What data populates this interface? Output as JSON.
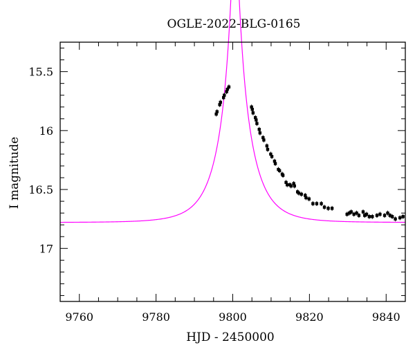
{
  "chart_data": {
    "type": "scatter",
    "title": "OGLE-2022-BLG-0165",
    "xlabel": "HJD - 2450000",
    "ylabel": "I magnitude",
    "xlim": [
      9755,
      9845
    ],
    "ylim": [
      17.45,
      15.25
    ],
    "y_inverted": true,
    "grid": false,
    "x_ticks": [
      9760,
      9780,
      9800,
      9820,
      9840
    ],
    "y_ticks": [
      15.5,
      16,
      16.5,
      17
    ],
    "y_tick_labels": [
      "15.5",
      "16",
      "16.5",
      "17"
    ],
    "model": {
      "color": "#ff00ff",
      "t0": 9800.6,
      "u0": 0.1,
      "tE": 7.5,
      "baseline_mag": 16.78,
      "xrange": [
        9755,
        9845
      ]
    },
    "series": [
      {
        "marker_color": "#000000",
        "x": [
          9795.7,
          9795.9,
          9796.6,
          9796.8,
          9797.6,
          9797.8,
          9798.4,
          9798.6,
          9799.0,
          9804.9,
          9805.1,
          9805.3,
          9805.9,
          9806.1,
          9806.3,
          9806.9,
          9807.1,
          9807.9,
          9808.1,
          9808.9,
          9809.1,
          9809.9,
          9810.2,
          9810.9,
          9811.1,
          9811.9,
          9812.2,
          9812.9,
          9813.1,
          9813.9,
          9814.2,
          9814.9,
          9815.2,
          9815.9,
          9816.1,
          9816.9,
          9817.2,
          9817.9,
          9818.9,
          9819.1,
          9819.9,
          9820.9,
          9821.9,
          9823.1,
          9823.9,
          9824.9,
          9825.9,
          9829.8,
          9830.4,
          9830.9,
          9831.6,
          9832.3,
          9832.9,
          9834.0,
          9834.4,
          9834.9,
          9835.6,
          9836.4,
          9837.6,
          9838.4,
          9839.6,
          9840.4,
          9841.0,
          9841.6,
          9842.4,
          9843.6,
          9844.4
        ],
        "y": [
          15.86,
          15.84,
          15.78,
          15.76,
          15.72,
          15.7,
          15.67,
          15.65,
          15.63,
          15.8,
          15.82,
          15.85,
          15.89,
          15.91,
          15.94,
          15.99,
          16.02,
          16.06,
          16.08,
          16.13,
          16.16,
          16.2,
          16.22,
          16.26,
          16.28,
          16.33,
          16.34,
          16.37,
          16.38,
          16.44,
          16.46,
          16.46,
          16.47,
          16.45,
          16.47,
          16.52,
          16.53,
          16.54,
          16.55,
          16.57,
          16.58,
          16.62,
          16.62,
          16.62,
          16.65,
          16.66,
          16.66,
          16.71,
          16.7,
          16.69,
          16.71,
          16.7,
          16.72,
          16.69,
          16.72,
          16.71,
          16.73,
          16.73,
          16.72,
          16.71,
          16.72,
          16.7,
          16.72,
          16.73,
          16.75,
          16.74,
          16.73
        ]
      }
    ]
  }
}
